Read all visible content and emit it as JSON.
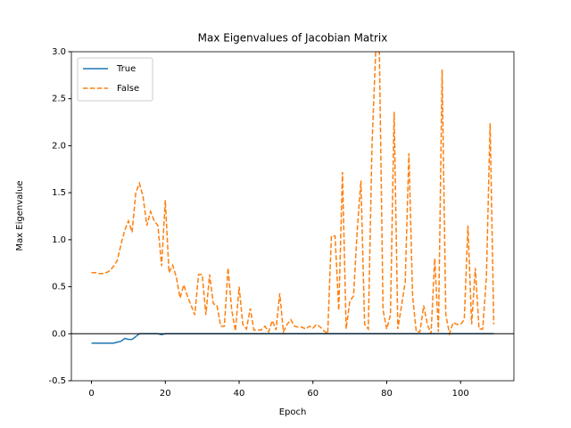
{
  "chart_data": {
    "type": "line",
    "title": "Max Eigenvalues of Jacobian Matrix",
    "x_label": "Epoch",
    "y_label": "Max Eigenvalue",
    "x": [
      0,
      1,
      2,
      3,
      4,
      5,
      6,
      7,
      8,
      9,
      10,
      11,
      12,
      13,
      14,
      15,
      16,
      17,
      18,
      19,
      20,
      21,
      22,
      23,
      24,
      25,
      26,
      27,
      28,
      29,
      30,
      31,
      32,
      33,
      34,
      35,
      36,
      37,
      38,
      39,
      40,
      41,
      42,
      43,
      44,
      45,
      46,
      47,
      48,
      49,
      50,
      51,
      52,
      53,
      54,
      55,
      56,
      57,
      58,
      59,
      60,
      61,
      62,
      63,
      64,
      65,
      66,
      67,
      68,
      69,
      70,
      71,
      72,
      73,
      74,
      75,
      76,
      77,
      78,
      79,
      80,
      81,
      82,
      83,
      84,
      85,
      86,
      87,
      88,
      89,
      90,
      91,
      92,
      93,
      94,
      95,
      96,
      97,
      98,
      99,
      100,
      101,
      102,
      103,
      104,
      105,
      106,
      107,
      108,
      109
    ],
    "series": [
      {
        "name": "True",
        "color": "#1f77b4",
        "dash": "solid",
        "values": [
          -0.1,
          -0.1,
          -0.1,
          -0.1,
          -0.1,
          -0.1,
          -0.1,
          -0.09,
          -0.08,
          -0.05,
          -0.06,
          -0.06,
          -0.03,
          0,
          0,
          0,
          0,
          0,
          0,
          -0.01,
          0,
          0,
          0,
          0,
          0,
          0,
          0,
          0,
          0,
          0,
          0,
          0,
          0,
          0,
          0,
          0,
          0,
          0,
          0,
          0,
          0,
          0,
          0,
          0,
          0,
          0,
          0,
          0,
          0,
          0,
          0,
          0,
          0,
          0,
          0,
          0,
          0,
          0,
          0,
          0,
          0,
          0,
          0,
          0,
          0,
          0,
          0,
          0,
          0,
          0,
          0,
          0,
          0,
          0,
          0,
          0,
          0,
          0,
          0,
          0,
          0,
          0,
          0,
          0,
          0,
          0,
          0,
          0,
          0,
          0,
          0,
          0,
          0,
          0,
          0,
          0,
          0,
          0,
          0,
          0,
          0,
          0,
          0,
          0,
          0,
          0,
          0,
          0,
          0,
          0
        ]
      },
      {
        "name": "False",
        "color": "#ff7f0e",
        "dash": "dashed",
        "values": [
          0.65,
          0.65,
          0.64,
          0.64,
          0.65,
          0.67,
          0.72,
          0.78,
          0.95,
          1.1,
          1.2,
          1.08,
          1.5,
          1.6,
          1.45,
          1.15,
          1.3,
          1.2,
          1.15,
          0.72,
          1.42,
          0.65,
          0.73,
          0.6,
          0.38,
          0.52,
          0.4,
          0.3,
          0.2,
          0.63,
          0.63,
          0.2,
          0.63,
          0.32,
          0.3,
          0.08,
          0.08,
          0.7,
          0.25,
          0.03,
          0.5,
          0.1,
          0.05,
          0.27,
          0.04,
          0.04,
          0.04,
          0.08,
          0.02,
          0.14,
          0.04,
          0.43,
          0.02,
          0.1,
          0.15,
          0.08,
          0.07,
          0.07,
          0.05,
          0.08,
          0.06,
          0.1,
          0.07,
          0.03,
          0.0,
          1.04,
          1.04,
          0.25,
          1.72,
          0.05,
          0.35,
          0.4,
          1.1,
          1.63,
          0.1,
          0.05,
          2.0,
          3.0,
          3.0,
          0.25,
          0.05,
          0.2,
          2.36,
          0.05,
          0.3,
          0.55,
          1.92,
          0.4,
          0.02,
          0.02,
          0.3,
          0.1,
          0.0,
          0.8,
          0.02,
          2.81,
          0.2,
          0.0,
          0.12,
          0.1,
          0.1,
          0.15,
          1.15,
          0.1,
          0.7,
          0.05,
          0.05,
          0.6,
          2.24,
          0.1
        ]
      }
    ],
    "hline": 0,
    "xlim": [
      -5.45,
      114.45
    ],
    "ylim": [
      -0.5,
      3.0
    ],
    "xticks": [
      0,
      20,
      40,
      60,
      80,
      100
    ],
    "yticks": [
      -0.5,
      {
        "value": 0,
        "label": "0.0"
      },
      0.5,
      {
        "value": 1,
        "label": "1.0"
      },
      1.5,
      {
        "value": 2,
        "label": "2.0"
      },
      2.5,
      {
        "value": 3,
        "label": "3.0"
      }
    ],
    "legend": "upper left"
  }
}
